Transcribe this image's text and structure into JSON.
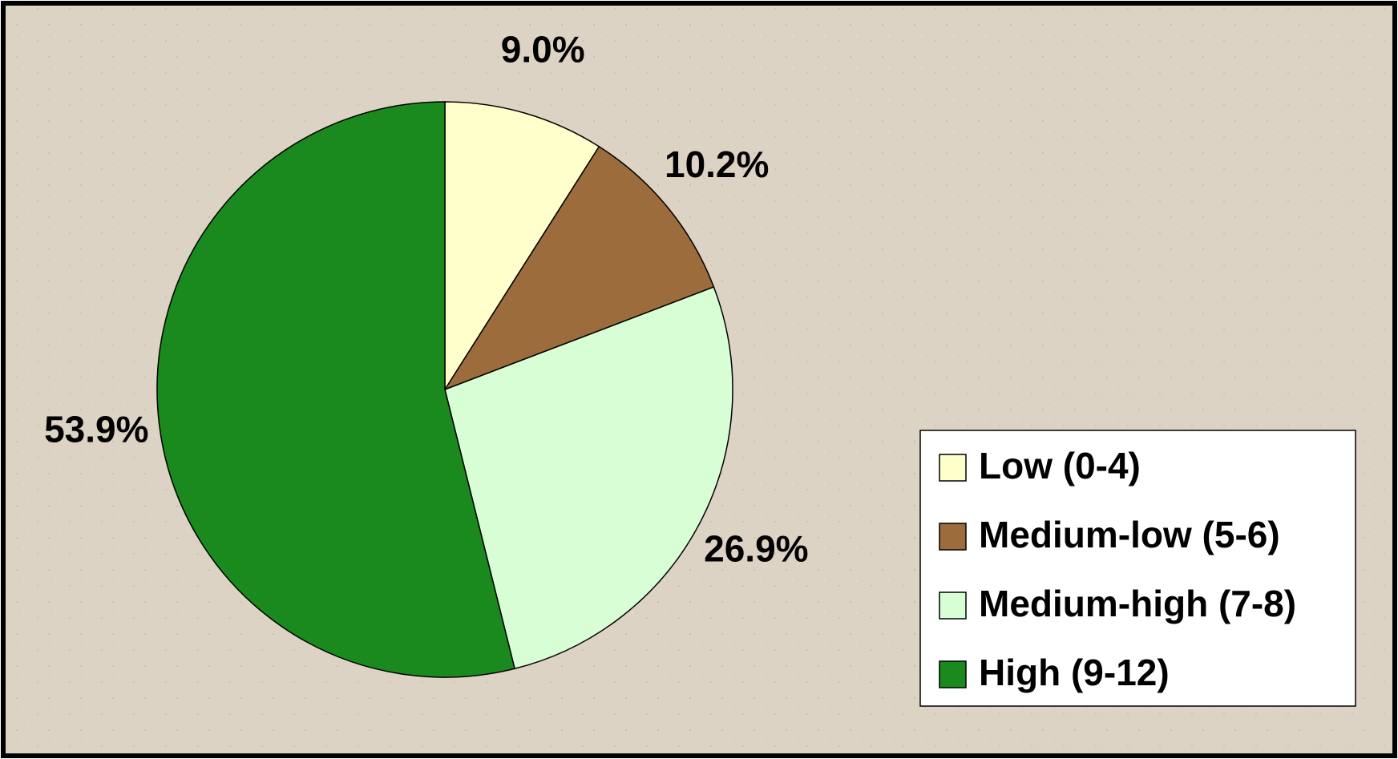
{
  "chart_data": {
    "type": "pie",
    "categories": [
      "Low (0-4)",
      "Medium-low (5-6)",
      "Medium-high (7-8)",
      "High (9-12)"
    ],
    "values": [
      9.0,
      10.2,
      26.9,
      53.9
    ],
    "value_labels": [
      "9.0%",
      "10.2%",
      "26.9%",
      "53.9%"
    ],
    "colors": [
      "#ffffcc",
      "#9c6c3c",
      "#d8fed6",
      "#1a8a1e"
    ],
    "legend": "right"
  }
}
